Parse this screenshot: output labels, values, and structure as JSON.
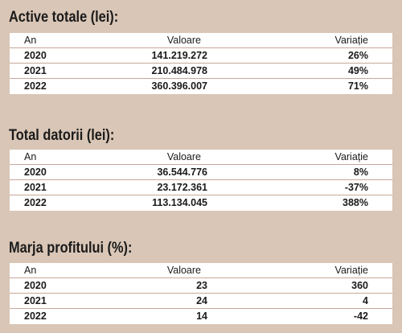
{
  "sections": [
    {
      "title": "Active totale (lei):",
      "headers": {
        "year": "An",
        "value": "Valoare",
        "variation": "Variație"
      },
      "rows": [
        {
          "year": "2020",
          "value": "141.219.272",
          "variation": "26%"
        },
        {
          "year": "2021",
          "value": "210.484.978",
          "variation": "49%"
        },
        {
          "year": "2022",
          "value": "360.396.007",
          "variation": "71%"
        }
      ]
    },
    {
      "title": "Total datorii (lei):",
      "headers": {
        "year": "An",
        "value": "Valoare",
        "variation": "Variație"
      },
      "rows": [
        {
          "year": "2020",
          "value": "36.544.776",
          "variation": "8%"
        },
        {
          "year": "2021",
          "value": "23.172.361",
          "variation": "-37%"
        },
        {
          "year": "2022",
          "value": "113.134.045",
          "variation": "388%"
        }
      ]
    },
    {
      "title": "Marja profitului (%):",
      "headers": {
        "year": "An",
        "value": "Valoare",
        "variation": "Variație"
      },
      "rows": [
        {
          "year": "2020",
          "value": "23",
          "variation": "360"
        },
        {
          "year": "2021",
          "value": "24",
          "variation": "4"
        },
        {
          "year": "2022",
          "value": "14",
          "variation": "-42"
        }
      ]
    }
  ],
  "colors": {
    "background": "#d9c6b6",
    "table_bg": "#ffffff",
    "row_divider": "#c8a898",
    "text": "#1a1a1a"
  }
}
